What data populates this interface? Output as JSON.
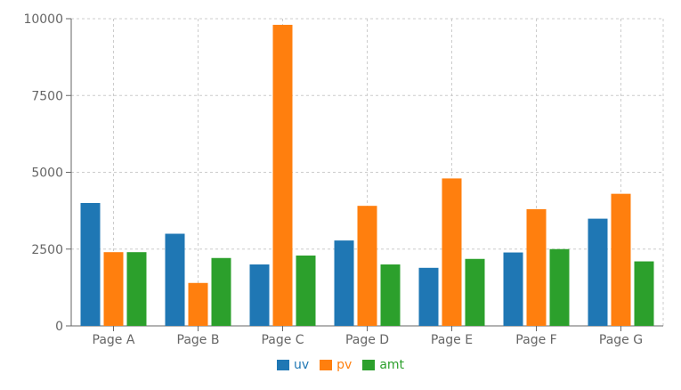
{
  "chart_data": {
    "type": "bar",
    "categories": [
      "Page A",
      "Page B",
      "Page C",
      "Page D",
      "Page E",
      "Page F",
      "Page G"
    ],
    "series": [
      {
        "name": "uv",
        "color": "#1f77b4",
        "values": [
          4000,
          3000,
          2000,
          2780,
          1890,
          2390,
          3490
        ]
      },
      {
        "name": "pv",
        "color": "#ff7f0e",
        "values": [
          2400,
          1398,
          9800,
          3908,
          4800,
          3800,
          4300
        ]
      },
      {
        "name": "amt",
        "color": "#2ca02c",
        "values": [
          2400,
          2210,
          2290,
          2000,
          2181,
          2500,
          2100
        ]
      }
    ],
    "yticks": [
      "0",
      "2500",
      "5000",
      "7500",
      "10000"
    ],
    "ylim": [
      0,
      10000
    ],
    "grid": true,
    "legend_position": "bottom-center"
  }
}
